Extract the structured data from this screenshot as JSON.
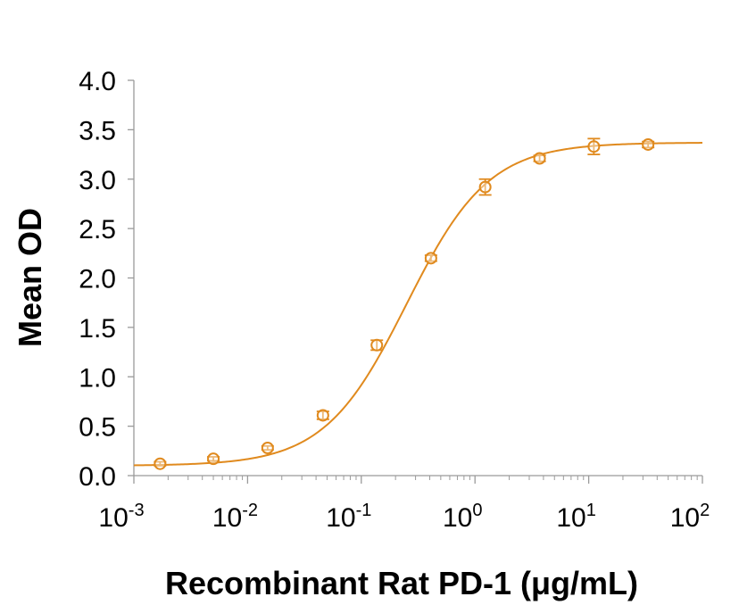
{
  "chart_data": {
    "type": "scatter",
    "xlabel": "Recombinant Rat PD-1 (μg/mL)",
    "ylabel": "Mean OD",
    "xscale": "log",
    "xlim": [
      0.001,
      100
    ],
    "ylim": [
      0,
      4
    ],
    "x_ticks": [
      {
        "base": "10",
        "exp": "-3"
      },
      {
        "base": "10",
        "exp": "-2"
      },
      {
        "base": "10",
        "exp": "-1"
      },
      {
        "base": "10",
        "exp": "0"
      },
      {
        "base": "10",
        "exp": "1"
      },
      {
        "base": "10",
        "exp": "2"
      }
    ],
    "y_ticks": [
      "0.0",
      "0.5",
      "1.0",
      "1.5",
      "2.0",
      "2.5",
      "3.0",
      "3.5",
      "4.0"
    ],
    "grid": false,
    "legend": "none",
    "color": "#E08A1E",
    "series": [
      {
        "points": [
          {
            "x": 0.0017,
            "y": 0.12,
            "err": 0.02
          },
          {
            "x": 0.005,
            "y": 0.17,
            "err": 0.02
          },
          {
            "x": 0.015,
            "y": 0.28,
            "err": 0.02
          },
          {
            "x": 0.046,
            "y": 0.61,
            "err": 0.04
          },
          {
            "x": 0.137,
            "y": 1.32,
            "err": 0.05
          },
          {
            "x": 0.41,
            "y": 2.2,
            "err": 0.03
          },
          {
            "x": 1.23,
            "y": 2.92,
            "err": 0.08
          },
          {
            "x": 3.7,
            "y": 3.21,
            "err": 0.03
          },
          {
            "x": 11.1,
            "y": 3.33,
            "err": 0.08
          },
          {
            "x": 33.3,
            "y": 3.35,
            "err": 0.03
          }
        ],
        "fit": {
          "model": "4PL",
          "bottom": 0.1,
          "top": 3.37,
          "ec50": 0.25,
          "hill": 1.2
        }
      }
    ]
  }
}
